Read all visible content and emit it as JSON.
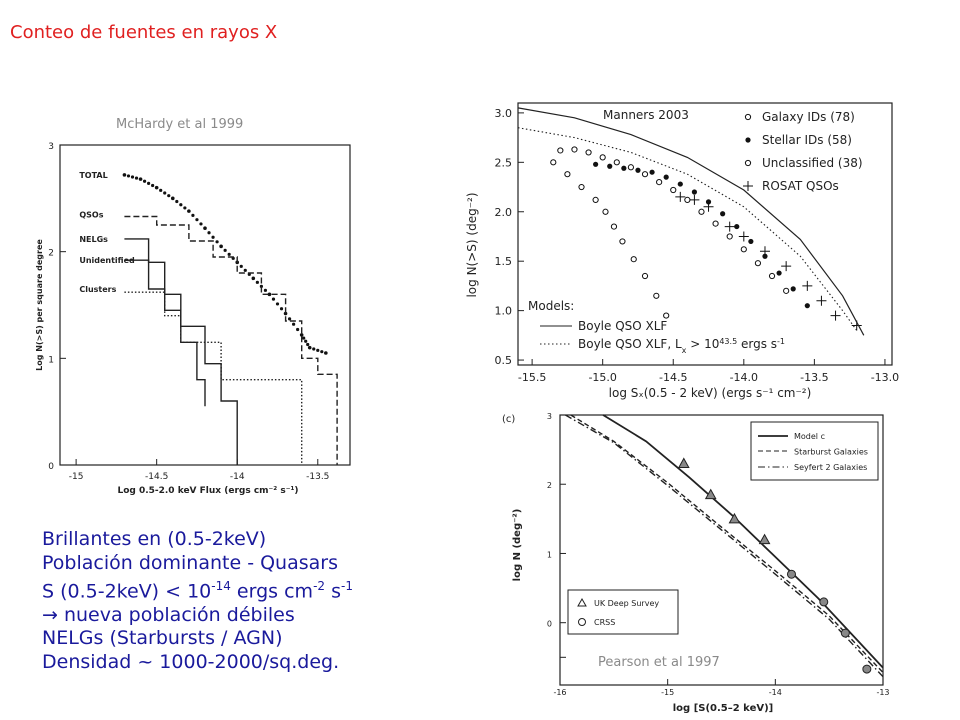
{
  "slide": {
    "title": "Conteo de fuentes en rayos X",
    "caption_mchardy": "McHardy et al 1999",
    "caption_manners": "Manners 2003",
    "caption_pearson": "Pearson et al 1997",
    "bullets": [
      "Brillantes en  (0.5-2keV)",
      "Población dominante - Quasars",
      "S (0.5-2keV) < 10",
      "→ nueva población débiles",
      "NELGs (Starbursts / AGN)",
      "Densidad ~ 1000-2000/sq.deg."
    ],
    "bullet3_parts": [
      "S (0.5-2keV) < 10",
      "-14",
      " ergs cm",
      "-2",
      " s",
      "-1"
    ],
    "text_color": "#1a1a9c",
    "title_color": "#e02020"
  },
  "chart_data": [
    {
      "id": "mchardy",
      "type": "line",
      "xlabel": "Log 0.5-2.0 keV Flux (ergs cm⁻² s⁻¹)",
      "ylabel": "Log N(>S) per square degree",
      "xlim": [
        -15.1,
        -13.3
      ],
      "ylim": [
        0,
        3
      ],
      "xticks": [
        -15,
        -14.5,
        -14,
        -13.5
      ],
      "xtick_labels": [
        "-15",
        "-14.5",
        "-14",
        "-13.5"
      ],
      "yticks": [
        0,
        1,
        2,
        3
      ],
      "ytick_labels": [
        "0",
        "1",
        "2",
        "3"
      ],
      "series_labels": [
        {
          "name": "TOTAL",
          "x": -14.98,
          "y": 2.72
        },
        {
          "name": "QSOs",
          "x": -14.98,
          "y": 2.35
        },
        {
          "name": "NELGs",
          "x": -14.98,
          "y": 2.12
        },
        {
          "name": "Unidentified",
          "x": -14.98,
          "y": 1.92
        },
        {
          "name": "Clusters",
          "x": -14.98,
          "y": 1.65
        }
      ],
      "series": [
        {
          "name": "TOTAL",
          "style": "dots",
          "points": [
            [
              -14.7,
              2.72
            ],
            [
              -14.6,
              2.68
            ],
            [
              -14.5,
              2.6
            ],
            [
              -14.4,
              2.5
            ],
            [
              -14.3,
              2.38
            ],
            [
              -14.2,
              2.22
            ],
            [
              -14.1,
              2.05
            ],
            [
              -14.0,
              1.9
            ],
            [
              -13.9,
              1.75
            ],
            [
              -13.8,
              1.6
            ],
            [
              -13.7,
              1.42
            ],
            [
              -13.6,
              1.22
            ],
            [
              -13.55,
              1.1
            ],
            [
              -13.45,
              1.05
            ]
          ]
        },
        {
          "name": "QSOs",
          "style": "dashed-step",
          "points": [
            [
              -14.7,
              2.33
            ],
            [
              -14.5,
              2.33
            ],
            [
              -14.5,
              2.25
            ],
            [
              -14.3,
              2.25
            ],
            [
              -14.3,
              2.1
            ],
            [
              -14.15,
              2.1
            ],
            [
              -14.15,
              1.95
            ],
            [
              -14.0,
              1.95
            ],
            [
              -14.0,
              1.8
            ],
            [
              -13.85,
              1.8
            ],
            [
              -13.85,
              1.6
            ],
            [
              -13.7,
              1.6
            ],
            [
              -13.7,
              1.35
            ],
            [
              -13.6,
              1.35
            ],
            [
              -13.6,
              1.0
            ],
            [
              -13.5,
              1.0
            ],
            [
              -13.5,
              0.85
            ],
            [
              -13.38,
              0.85
            ],
            [
              -13.38,
              0
            ]
          ]
        },
        {
          "name": "NELGs",
          "style": "solid-step",
          "points": [
            [
              -14.7,
              2.12
            ],
            [
              -14.55,
              2.12
            ],
            [
              -14.55,
              1.9
            ],
            [
              -14.45,
              1.9
            ],
            [
              -14.45,
              1.6
            ],
            [
              -14.35,
              1.6
            ],
            [
              -14.35,
              1.3
            ],
            [
              -14.2,
              1.3
            ],
            [
              -14.2,
              0.95
            ],
            [
              -14.1,
              0.95
            ],
            [
              -14.1,
              0.6
            ],
            [
              -14.0,
              0.6
            ],
            [
              -14.0,
              0
            ]
          ]
        },
        {
          "name": "Unidentified",
          "style": "solid-step",
          "points": [
            [
              -14.7,
              1.92
            ],
            [
              -14.55,
              1.92
            ],
            [
              -14.55,
              1.65
            ],
            [
              -14.45,
              1.65
            ],
            [
              -14.45,
              1.45
            ],
            [
              -14.35,
              1.45
            ],
            [
              -14.35,
              1.15
            ],
            [
              -14.25,
              1.15
            ],
            [
              -14.25,
              0.8
            ],
            [
              -14.2,
              0.8
            ],
            [
              -14.2,
              0.55
            ]
          ]
        },
        {
          "name": "Clusters",
          "style": "dotted-step",
          "points": [
            [
              -14.7,
              1.62
            ],
            [
              -14.45,
              1.62
            ],
            [
              -14.45,
              1.4
            ],
            [
              -14.35,
              1.4
            ],
            [
              -14.35,
              1.15
            ],
            [
              -14.1,
              1.15
            ],
            [
              -14.1,
              0.8
            ],
            [
              -13.6,
              0.8
            ],
            [
              -13.6,
              0
            ]
          ]
        }
      ]
    },
    {
      "id": "manners",
      "type": "scatter",
      "xlabel": "log Sₓ(0.5 - 2 keV) (ergs s⁻¹ cm⁻²)",
      "ylabel": "log N(>S) (deg⁻²)",
      "xlim": [
        -15.6,
        -12.95
      ],
      "ylim": [
        0.45,
        3.1
      ],
      "xticks": [
        -15.5,
        -15.0,
        -14.5,
        -14.0,
        -13.5,
        -13.0
      ],
      "xtick_labels": [
        "-15.5",
        "-15.0",
        "-14.5",
        "-14.0",
        "-13.5",
        "-13.0"
      ],
      "yticks": [
        0.5,
        1.0,
        1.5,
        2.0,
        2.5,
        3.0
      ],
      "ytick_labels": [
        "0.5",
        "1.0",
        "1.5",
        "2.0",
        "2.5",
        "3.0"
      ],
      "legend": [
        "Galaxy IDs (78)",
        "Stellar IDs (58)",
        "Unclassified (38)",
        "ROSAT QSOs"
      ],
      "models_title": "Models:",
      "models": [
        "Boyle QSO XLF",
        "Boyle QSO XLF, L"
      ],
      "model2_suffix": "> 10",
      "model2_exp": "43.5",
      "model2_unit": "ergs s",
      "model2_unit_exp": "-1",
      "model2_sub": "x",
      "series": [
        {
          "name": "Galaxy IDs (78)",
          "marker": "open-circle",
          "points": [
            [
              -15.3,
              2.62
            ],
            [
              -15.2,
              2.63
            ],
            [
              -15.1,
              2.6
            ],
            [
              -15.0,
              2.55
            ],
            [
              -14.9,
              2.5
            ],
            [
              -14.8,
              2.45
            ],
            [
              -14.7,
              2.38
            ],
            [
              -14.6,
              2.3
            ],
            [
              -14.5,
              2.22
            ],
            [
              -14.4,
              2.12
            ],
            [
              -14.3,
              2.0
            ],
            [
              -14.2,
              1.88
            ],
            [
              -14.1,
              1.75
            ],
            [
              -14.0,
              1.62
            ],
            [
              -13.9,
              1.48
            ],
            [
              -13.8,
              1.35
            ],
            [
              -13.7,
              1.2
            ]
          ]
        },
        {
          "name": "Stellar IDs (58)",
          "marker": "filled-circle",
          "points": [
            [
              -15.05,
              2.48
            ],
            [
              -14.95,
              2.46
            ],
            [
              -14.85,
              2.44
            ],
            [
              -14.75,
              2.42
            ],
            [
              -14.65,
              2.4
            ],
            [
              -14.55,
              2.35
            ],
            [
              -14.45,
              2.28
            ],
            [
              -14.35,
              2.2
            ],
            [
              -14.25,
              2.1
            ],
            [
              -14.15,
              1.98
            ],
            [
              -14.05,
              1.85
            ],
            [
              -13.95,
              1.7
            ],
            [
              -13.85,
              1.55
            ],
            [
              -13.75,
              1.38
            ],
            [
              -13.65,
              1.22
            ],
            [
              -13.55,
              1.05
            ]
          ]
        },
        {
          "name": "Unclassified (38)",
          "marker": "open-circle",
          "points": [
            [
              -15.35,
              2.5
            ],
            [
              -15.25,
              2.38
            ],
            [
              -15.15,
              2.25
            ],
            [
              -15.05,
              2.12
            ],
            [
              -14.98,
              2.0
            ],
            [
              -14.92,
              1.85
            ],
            [
              -14.86,
              1.7
            ],
            [
              -14.78,
              1.52
            ],
            [
              -14.7,
              1.35
            ],
            [
              -14.62,
              1.15
            ],
            [
              -14.55,
              0.95
            ]
          ]
        },
        {
          "name": "ROSAT QSOs",
          "marker": "plus",
          "points": [
            [
              -14.45,
              2.15
            ],
            [
              -14.35,
              2.12
            ],
            [
              -14.25,
              2.05
            ],
            [
              -14.1,
              1.85
            ],
            [
              -14.0,
              1.75
            ],
            [
              -13.85,
              1.6
            ],
            [
              -13.7,
              1.45
            ],
            [
              -13.55,
              1.25
            ],
            [
              -13.45,
              1.1
            ],
            [
              -13.35,
              0.95
            ],
            [
              -13.2,
              0.85
            ]
          ]
        },
        {
          "name": "Boyle QSO XLF",
          "marker": "solid-line",
          "points": [
            [
              -15.6,
              3.05
            ],
            [
              -15.2,
              2.95
            ],
            [
              -14.8,
              2.78
            ],
            [
              -14.4,
              2.55
            ],
            [
              -14.0,
              2.22
            ],
            [
              -13.6,
              1.72
            ],
            [
              -13.3,
              1.15
            ],
            [
              -13.15,
              0.75
            ]
          ]
        },
        {
          "name": "Boyle QSO XLF, Lx",
          "marker": "dotted-line",
          "points": [
            [
              -15.6,
              2.85
            ],
            [
              -15.2,
              2.75
            ],
            [
              -14.8,
              2.6
            ],
            [
              -14.4,
              2.38
            ],
            [
              -14.0,
              2.05
            ],
            [
              -13.6,
              1.55
            ],
            [
              -13.3,
              1.0
            ],
            [
              -13.2,
              0.8
            ]
          ]
        }
      ]
    },
    {
      "id": "pearson",
      "type": "line",
      "panel_label": "(c)",
      "xlabel": "log [S(0.5–2 keV)]",
      "ylabel": "log N (deg⁻²)",
      "xlim": [
        -16,
        -13
      ],
      "ylim": [
        -0.9,
        3
      ],
      "xticks": [
        -16,
        -15,
        -14,
        -13
      ],
      "xtick_labels": [
        "-16",
        "-15",
        "-14",
        "-13"
      ],
      "yticks": [
        -0.5,
        0,
        1,
        2,
        3
      ],
      "ytick_labels": [
        "",
        "0",
        "1",
        "2",
        "3"
      ],
      "legend": [
        "Model c",
        "Starburst Galaxies",
        "Seyfert 2 Galaxies"
      ],
      "legend2": [
        "UK Deep Survey",
        "CRSS"
      ],
      "series": [
        {
          "name": "Model c",
          "style": "solid",
          "points": [
            [
              -15.6,
              3.0
            ],
            [
              -15.2,
              2.62
            ],
            [
              -14.8,
              2.1
            ],
            [
              -14.4,
              1.55
            ],
            [
              -14.0,
              0.95
            ],
            [
              -13.6,
              0.35
            ],
            [
              -13.0,
              -0.65
            ]
          ]
        },
        {
          "name": "Starburst Galaxies",
          "style": "dashed",
          "points": [
            [
              -15.9,
              3.0
            ],
            [
              -15.5,
              2.62
            ],
            [
              -15.0,
              2.02
            ],
            [
              -14.5,
              1.38
            ],
            [
              -14.0,
              0.75
            ],
            [
              -13.5,
              0.1
            ],
            [
              -13.0,
              -0.72
            ]
          ]
        },
        {
          "name": "Seyfert 2 Galaxies",
          "style": "dashdot",
          "points": [
            [
              -15.95,
              3.0
            ],
            [
              -15.5,
              2.6
            ],
            [
              -15.0,
              1.98
            ],
            [
              -14.5,
              1.34
            ],
            [
              -14.0,
              0.7
            ],
            [
              -13.5,
              0.05
            ],
            [
              -13.0,
              -0.78
            ]
          ]
        },
        {
          "name": "UK Deep Survey",
          "marker": "triangle",
          "points": [
            [
              -14.85,
              2.3
            ],
            [
              -14.6,
              1.85
            ],
            [
              -14.38,
              1.5
            ],
            [
              -14.1,
              1.2
            ]
          ]
        },
        {
          "name": "CRSS",
          "marker": "circle",
          "points": [
            [
              -13.85,
              0.7
            ],
            [
              -13.55,
              0.3
            ],
            [
              -13.35,
              -0.15
            ],
            [
              -13.15,
              -0.67
            ]
          ]
        }
      ]
    }
  ]
}
